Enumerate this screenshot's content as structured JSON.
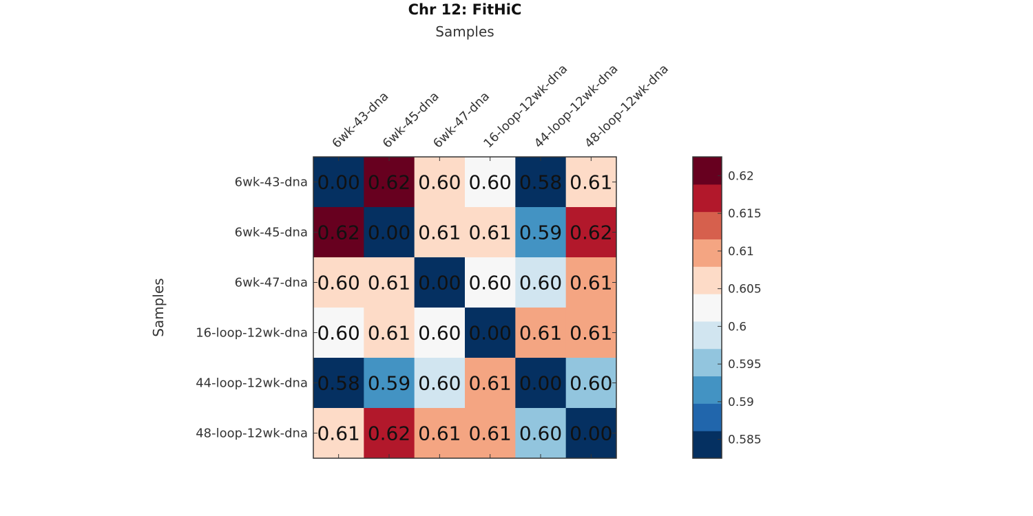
{
  "chart_data": {
    "type": "heatmap",
    "title": "Chr 12: FitHiC",
    "xlabel": "Samples",
    "ylabel": "Samples",
    "x_categories": [
      "6wk-43-dna",
      "6wk-45-dna",
      "6wk-47-dna",
      "16-loop-12wk-dna",
      "44-loop-12wk-dna",
      "48-loop-12wk-dna"
    ],
    "y_categories": [
      "6wk-43-dna",
      "6wk-45-dna",
      "6wk-47-dna",
      "16-loop-12wk-dna",
      "44-loop-12wk-dna",
      "48-loop-12wk-dna"
    ],
    "values": [
      [
        0.0,
        0.621,
        0.6055,
        0.6015,
        0.5845,
        0.607
      ],
      [
        0.621,
        0.0,
        0.606,
        0.6065,
        0.593,
        0.616
      ],
      [
        0.6055,
        0.606,
        0.0,
        0.6015,
        0.599,
        0.6095
      ],
      [
        0.6015,
        0.6065,
        0.6015,
        0.0,
        0.609,
        0.609
      ],
      [
        0.5845,
        0.593,
        0.599,
        0.609,
        0.0,
        0.5965
      ],
      [
        0.607,
        0.616,
        0.6095,
        0.609,
        0.5965,
        0.0
      ]
    ],
    "cell_labels": [
      [
        "0.00",
        "0.62",
        "0.60",
        "0.60",
        "0.58",
        "0.61"
      ],
      [
        "0.62",
        "0.00",
        "0.61",
        "0.61",
        "0.59",
        "0.62"
      ],
      [
        "0.60",
        "0.61",
        "0.00",
        "0.60",
        "0.60",
        "0.61"
      ],
      [
        "0.60",
        "0.61",
        "0.60",
        "0.00",
        "0.61",
        "0.61"
      ],
      [
        "0.58",
        "0.59",
        "0.60",
        "0.61",
        "0.00",
        "0.60"
      ],
      [
        "0.61",
        "0.62",
        "0.61",
        "0.61",
        "0.60",
        "0.00"
      ]
    ],
    "colorbar": {
      "range": [
        0.5825,
        0.6225
      ],
      "ticks": [
        0.585,
        0.59,
        0.595,
        0.6,
        0.605,
        0.61,
        0.615,
        0.62
      ],
      "tick_labels": [
        "0.585",
        "0.59",
        "0.595",
        "0.6",
        "0.605",
        "0.61",
        "0.615",
        "0.62"
      ],
      "colors": [
        "#053061",
        "#2166ac",
        "#4393c3",
        "#92c5de",
        "#d1e5f0",
        "#f7f7f7",
        "#fddbc7",
        "#f4a582",
        "#d6604d",
        "#b2182b",
        "#67001f"
      ]
    },
    "x_axis_position": "top",
    "legend": "colorbar-right"
  }
}
